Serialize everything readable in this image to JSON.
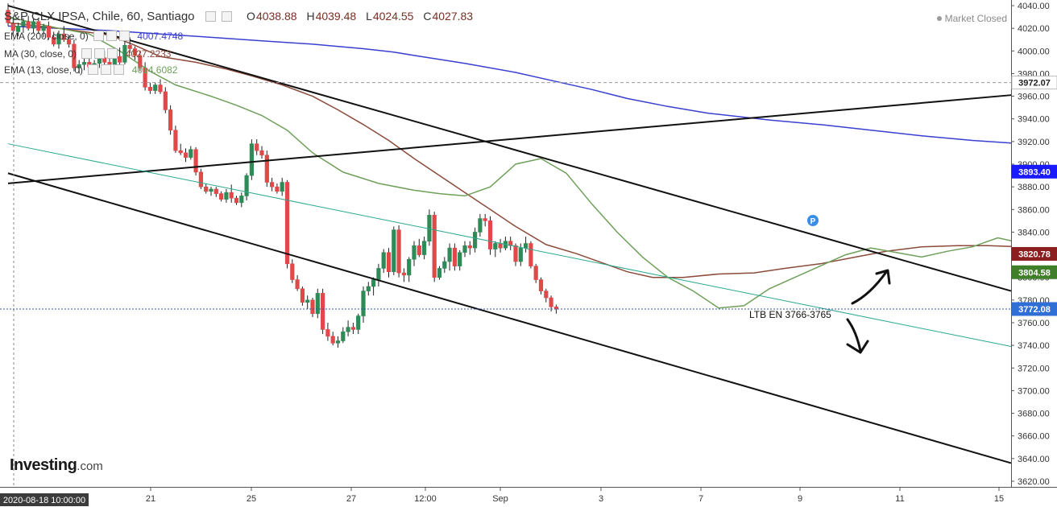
{
  "header": {
    "symbol": "S&P CLX IPSA, Chile, 60, Santiago",
    "open_label": "O",
    "open": "4038.88",
    "high_label": "H",
    "high": "4039.48",
    "low_label": "L",
    "low": "4024.55",
    "close_label": "C",
    "close": "4027.83",
    "status": "Market Closed"
  },
  "indicators": [
    {
      "label": "EMA (200, close, 0)",
      "value": "4007.4748",
      "color": "#3a3fd0"
    },
    {
      "label": "MA (30, close, 0)",
      "value": "4027.2233",
      "color": "#8b4a3a"
    },
    {
      "label": "EMA (13, close, 0)",
      "value": "4014.6082",
      "color": "#6fa05a"
    }
  ],
  "logo": {
    "name": "Investing",
    "suffix": ".com"
  },
  "annotation": "LTB EN 3766-3765",
  "cursor_time": "2020-08-18 10:00:00",
  "colors": {
    "up": "#2e8b57",
    "down": "#e0484a",
    "ema200": "#3a3fd0",
    "ma30": "#8b4a3a",
    "ema13": "#6fa05a",
    "trendline": "#111111",
    "teal_line": "#2aa98e"
  },
  "chart_data": {
    "type": "candlestick",
    "y_axis": {
      "min": 3615,
      "max": 4045,
      "ticks": [
        3620,
        3640,
        3660,
        3680,
        3700,
        3720,
        3740,
        3760,
        3780,
        3800,
        3820,
        3840,
        3860,
        3880,
        3900,
        3920,
        3940,
        3960,
        3980,
        4000,
        4020,
        4040
      ]
    },
    "x_axis": {
      "tick_labels": [
        "21",
        "25",
        "27",
        "12:00",
        "Sep",
        "3",
        "7",
        "9",
        "11",
        "15"
      ]
    },
    "price_labels": [
      {
        "value": "3972.07",
        "bg": "#ffffff",
        "fg": "#222222"
      },
      {
        "value": "3893.40",
        "bg": "#1a1aff",
        "fg": "#ffffff"
      },
      {
        "value": "3820.78",
        "bg": "#8b1f1f",
        "fg": "#ffffff"
      },
      {
        "value": "3804.58",
        "bg": "#3f7f2a",
        "fg": "#ffffff"
      },
      {
        "value": "3772.08",
        "bg": "#2f6fd6",
        "fg": "#ffffff"
      }
    ],
    "series": [
      {
        "name": "EMA (200, close, 0)",
        "points": [
          [
            0,
            4022
          ],
          [
            10,
            4020
          ],
          [
            20,
            4018
          ],
          [
            30,
            4015
          ],
          [
            40,
            4012
          ],
          [
            50,
            4009
          ],
          [
            60,
            4006
          ],
          [
            70,
            4002
          ],
          [
            76,
            3999
          ],
          [
            80,
            3996
          ],
          [
            90,
            3989
          ],
          [
            100,
            3981
          ],
          [
            108,
            3973
          ],
          [
            115,
            3966
          ],
          [
            122,
            3958
          ],
          [
            130,
            3951
          ],
          [
            138,
            3945
          ],
          [
            150,
            3939
          ],
          [
            160,
            3935
          ],
          [
            170,
            3930
          ],
          [
            180,
            3925
          ],
          [
            190,
            3921
          ],
          [
            200,
            3918
          ],
          [
            210,
            3912
          ],
          [
            215,
            3910
          ],
          [
            220,
            3904
          ]
        ]
      },
      {
        "name": "MA (30, close, 0)",
        "points": [
          [
            0,
            4025
          ],
          [
            10,
            4020
          ],
          [
            20,
            4014
          ],
          [
            25,
            4005
          ],
          [
            30,
            3995
          ],
          [
            37,
            3990
          ],
          [
            43,
            3984
          ],
          [
            48,
            3978
          ],
          [
            54,
            3970
          ],
          [
            60,
            3960
          ],
          [
            65,
            3948
          ],
          [
            70,
            3935
          ],
          [
            75,
            3921
          ],
          [
            80,
            3905
          ],
          [
            85,
            3890
          ],
          [
            90,
            3875
          ],
          [
            95,
            3860
          ],
          [
            100,
            3845
          ],
          [
            106,
            3829
          ],
          [
            112,
            3821
          ],
          [
            117,
            3813
          ],
          [
            122,
            3805
          ],
          [
            127,
            3800
          ],
          [
            133,
            3800
          ],
          [
            140,
            3803
          ],
          [
            147,
            3804
          ],
          [
            153,
            3808
          ],
          [
            160,
            3812
          ],
          [
            167,
            3818
          ],
          [
            173,
            3823
          ],
          [
            180,
            3827
          ],
          [
            187,
            3828
          ],
          [
            193,
            3828
          ],
          [
            200,
            3827
          ],
          [
            205,
            3825
          ],
          [
            210,
            3823
          ],
          [
            215,
            3822
          ]
        ]
      },
      {
        "name": "EMA (13, close, 0)",
        "points": [
          [
            0,
            4030
          ],
          [
            10,
            4020
          ],
          [
            16,
            4015
          ],
          [
            22,
            4000
          ],
          [
            28,
            3982
          ],
          [
            33,
            3970
          ],
          [
            40,
            3960
          ],
          [
            45,
            3952
          ],
          [
            50,
            3943
          ],
          [
            55,
            3930
          ],
          [
            60,
            3910
          ],
          [
            66,
            3893
          ],
          [
            73,
            3883
          ],
          [
            80,
            3877
          ],
          [
            85,
            3874
          ],
          [
            90,
            3872
          ],
          [
            95,
            3880
          ],
          [
            100,
            3900
          ],
          [
            105,
            3905
          ],
          [
            110,
            3892
          ],
          [
            115,
            3865
          ],
          [
            120,
            3840
          ],
          [
            125,
            3818
          ],
          [
            130,
            3800
          ],
          [
            135,
            3788
          ],
          [
            140,
            3773
          ],
          [
            145,
            3775
          ],
          [
            150,
            3790
          ],
          [
            155,
            3800
          ],
          [
            160,
            3810
          ],
          [
            165,
            3820
          ],
          [
            170,
            3826
          ],
          [
            175,
            3822
          ],
          [
            180,
            3818
          ],
          [
            185,
            3823
          ],
          [
            190,
            3827
          ],
          [
            195,
            3835
          ],
          [
            200,
            3830
          ],
          [
            205,
            3828
          ],
          [
            210,
            3823
          ],
          [
            215,
            3805
          ]
        ]
      }
    ],
    "candles": [
      [
        4036,
        4042,
        4022,
        4025
      ],
      [
        4024,
        4030,
        4015,
        4018
      ],
      [
        4017,
        4025,
        4013,
        4022
      ],
      [
        4022,
        4029,
        4016,
        4026
      ],
      [
        4026,
        4031,
        4018,
        4020
      ],
      [
        4020,
        4028,
        4016,
        4026
      ],
      [
        4026,
        4029,
        4015,
        4018
      ],
      [
        4018,
        4024,
        4012,
        4022
      ],
      [
        4022,
        4026,
        4010,
        4012
      ],
      [
        4012,
        4017,
        4004,
        4006
      ],
      [
        4006,
        4018,
        4002,
        4015
      ],
      [
        4015,
        4022,
        4008,
        4010
      ],
      [
        4010,
        4014,
        4003,
        4006
      ],
      [
        4006,
        4010,
        3982,
        3985
      ],
      [
        3985,
        3992,
        3980,
        3988
      ],
      [
        3988,
        3994,
        3983,
        3990
      ],
      [
        3990,
        3995,
        3984,
        3986
      ],
      [
        3986,
        3992,
        3981,
        3989
      ],
      [
        3989,
        3998,
        3985,
        3994
      ],
      [
        3994,
        4000,
        3987,
        3990
      ],
      [
        3990,
        3996,
        3984,
        3988
      ],
      [
        3988,
        3998,
        3985,
        3995
      ],
      [
        3995,
        4003,
        3986,
        3990
      ],
      [
        3990,
        4010,
        3988,
        4005
      ],
      [
        4005,
        4012,
        3998,
        4002
      ],
      [
        4002,
        4004,
        3992,
        3996
      ],
      [
        3996,
        4000,
        3982,
        3985
      ],
      [
        3985,
        3990,
        3965,
        3968
      ],
      [
        3968,
        3972,
        3962,
        3965
      ],
      [
        3965,
        3972,
        3962,
        3970
      ],
      [
        3970,
        3975,
        3962,
        3964
      ],
      [
        3964,
        3968,
        3945,
        3948
      ],
      [
        3948,
        3952,
        3926,
        3930
      ],
      [
        3930,
        3934,
        3910,
        3912
      ],
      [
        3912,
        3918,
        3908,
        3910
      ],
      [
        3910,
        3914,
        3902,
        3906
      ],
      [
        3906,
        3916,
        3904,
        3913
      ],
      [
        3913,
        3915,
        3890,
        3893
      ],
      [
        3893,
        3896,
        3878,
        3880
      ],
      [
        3880,
        3883,
        3874,
        3876
      ],
      [
        3876,
        3880,
        3872,
        3878
      ],
      [
        3878,
        3880,
        3871,
        3874
      ],
      [
        3874,
        3876,
        3867,
        3869
      ],
      [
        3869,
        3878,
        3866,
        3875
      ],
      [
        3875,
        3882,
        3866,
        3870
      ],
      [
        3870,
        3872,
        3864,
        3866
      ],
      [
        3866,
        3875,
        3862,
        3872
      ],
      [
        3872,
        3892,
        3868,
        3890
      ],
      [
        3890,
        3922,
        3886,
        3918
      ],
      [
        3918,
        3922,
        3908,
        3912
      ],
      [
        3912,
        3916,
        3905,
        3908
      ],
      [
        3908,
        3912,
        3880,
        3884
      ],
      [
        3884,
        3888,
        3876,
        3880
      ],
      [
        3880,
        3883,
        3874,
        3876
      ],
      [
        3876,
        3888,
        3872,
        3884
      ],
      [
        3884,
        3886,
        3808,
        3812
      ],
      [
        3812,
        3816,
        3795,
        3798
      ],
      [
        3798,
        3802,
        3788,
        3790
      ],
      [
        3790,
        3792,
        3775,
        3778
      ],
      [
        3778,
        3784,
        3772,
        3780
      ],
      [
        3780,
        3782,
        3765,
        3768
      ],
      [
        3768,
        3790,
        3764,
        3786
      ],
      [
        3786,
        3790,
        3750,
        3754
      ],
      [
        3754,
        3760,
        3744,
        3748
      ],
      [
        3748,
        3752,
        3740,
        3742
      ],
      [
        3742,
        3748,
        3738,
        3744
      ],
      [
        3744,
        3756,
        3742,
        3752
      ],
      [
        3752,
        3762,
        3748,
        3756
      ],
      [
        3756,
        3760,
        3750,
        3754
      ],
      [
        3754,
        3768,
        3750,
        3766
      ],
      [
        3766,
        3792,
        3760,
        3788
      ],
      [
        3788,
        3796,
        3784,
        3792
      ],
      [
        3792,
        3800,
        3784,
        3798
      ],
      [
        3798,
        3812,
        3792,
        3808
      ],
      [
        3808,
        3825,
        3804,
        3822
      ],
      [
        3822,
        3826,
        3800,
        3805
      ],
      [
        3805,
        3845,
        3802,
        3842
      ],
      [
        3842,
        3846,
        3800,
        3804
      ],
      [
        3804,
        3808,
        3796,
        3802
      ],
      [
        3802,
        3818,
        3796,
        3816
      ],
      [
        3816,
        3832,
        3810,
        3828
      ],
      [
        3828,
        3834,
        3818,
        3820
      ],
      [
        3820,
        3836,
        3816,
        3832
      ],
      [
        3832,
        3860,
        3828,
        3855
      ],
      [
        3855,
        3858,
        3796,
        3800
      ],
      [
        3800,
        3810,
        3798,
        3808
      ],
      [
        3808,
        3818,
        3804,
        3814
      ],
      [
        3814,
        3830,
        3806,
        3826
      ],
      [
        3826,
        3830,
        3806,
        3810
      ],
      [
        3810,
        3824,
        3806,
        3822
      ],
      [
        3822,
        3832,
        3818,
        3828
      ],
      [
        3828,
        3832,
        3820,
        3826
      ],
      [
        3826,
        3844,
        3822,
        3840
      ],
      [
        3840,
        3856,
        3836,
        3852
      ],
      [
        3852,
        3856,
        3845,
        3850
      ],
      [
        3850,
        3854,
        3820,
        3825
      ],
      [
        3825,
        3832,
        3818,
        3830
      ],
      [
        3830,
        3834,
        3822,
        3826
      ],
      [
        3826,
        3836,
        3824,
        3832
      ],
      [
        3832,
        3836,
        3824,
        3828
      ],
      [
        3828,
        3830,
        3810,
        3814
      ],
      [
        3814,
        3830,
        3810,
        3826
      ],
      [
        3826,
        3836,
        3822,
        3830
      ],
      [
        3830,
        3832,
        3808,
        3810
      ],
      [
        3810,
        3812,
        3795,
        3798
      ],
      [
        3798,
        3800,
        3785,
        3788
      ],
      [
        3788,
        3790,
        3778,
        3782
      ],
      [
        3782,
        3784,
        3770,
        3774
      ],
      [
        3774,
        3776,
        3768,
        3772
      ]
    ],
    "trendlines": [
      {
        "name": "channel-upper",
        "from": [
          0,
          4040
        ],
        "to": [
          230,
          3788
        ]
      },
      {
        "name": "channel-lower",
        "from": [
          0,
          3892
        ],
        "to": [
          225,
          3636
        ]
      },
      {
        "name": "rising-line",
        "from": [
          0,
          3883
        ],
        "to": [
          200,
          3961
        ]
      },
      {
        "name": "teal-line",
        "from": [
          0,
          3918
        ],
        "to": [
          230,
          3739
        ]
      }
    ]
  }
}
